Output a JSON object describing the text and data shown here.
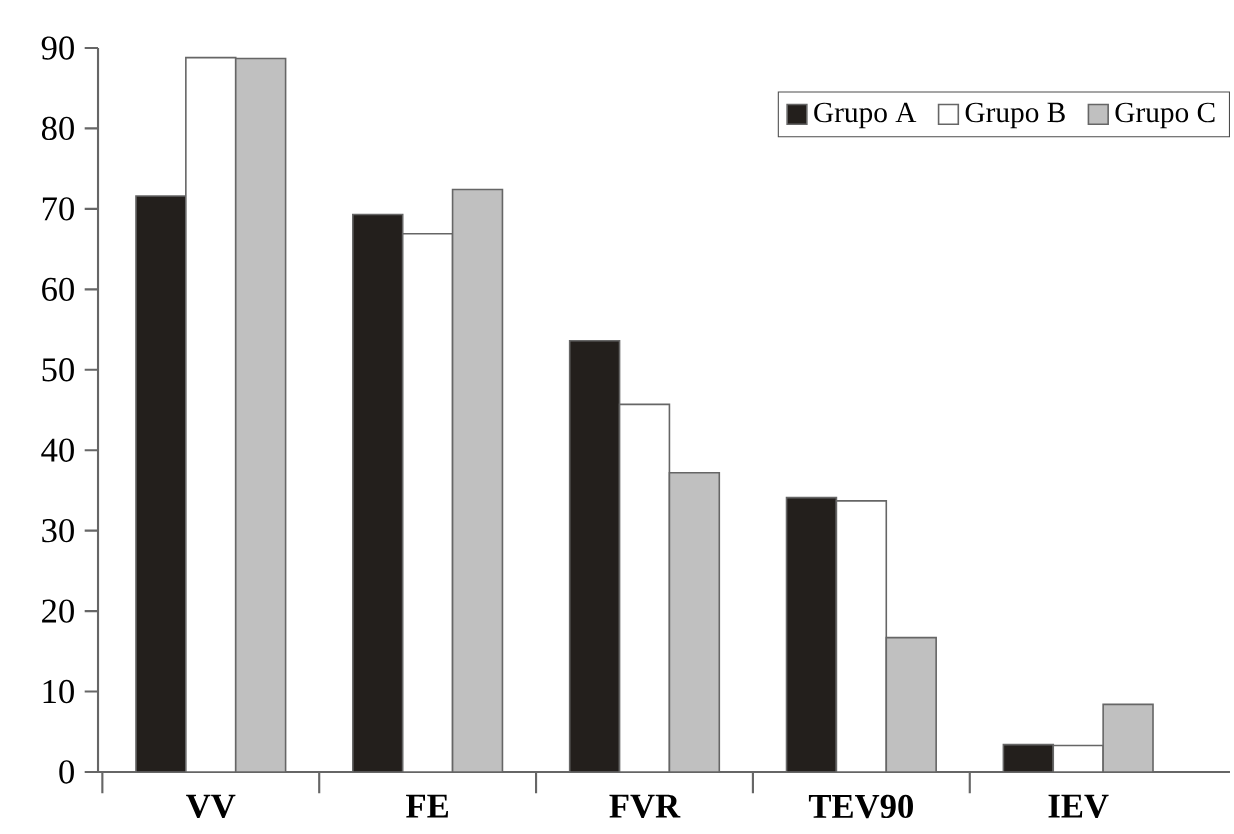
{
  "chart_data": {
    "type": "bar",
    "categories": [
      "VV",
      "FE",
      "FVR",
      "TEV90",
      "IEV"
    ],
    "series": [
      {
        "name": "Grupo A",
        "color": "#231f1c",
        "values": [
          71.6,
          69.3,
          53.6,
          34.1,
          3.4
        ]
      },
      {
        "name": "Grupo B",
        "color": "#ffffff",
        "values": [
          88.8,
          66.9,
          45.7,
          33.7,
          3.3
        ]
      },
      {
        "name": "Grupo C",
        "color": "#c0c0c0",
        "values": [
          88.7,
          72.4,
          37.2,
          16.7,
          8.4
        ]
      }
    ],
    "ylim": [
      0,
      90
    ],
    "yticks": [
      0,
      10,
      20,
      30,
      40,
      50,
      60,
      70,
      80,
      90
    ],
    "grid": false,
    "legend": "top right"
  }
}
